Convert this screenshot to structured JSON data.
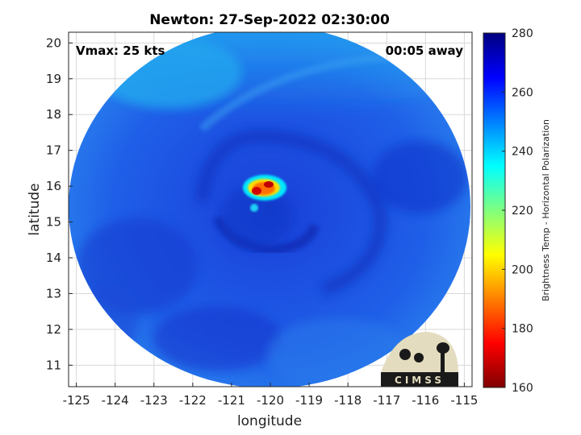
{
  "chart_data": {
    "type": "heatmap",
    "title": "Newton: 27-Sep-2022 02:30:00",
    "annotation_left": "Vmax: 25 kts",
    "annotation_right": "00:05 away",
    "xlabel": "longitude",
    "ylabel": "latitude",
    "xlim": [
      -125.2,
      -114.8
    ],
    "ylim": [
      10.4,
      20.3
    ],
    "x_ticks": [
      -125,
      -124,
      -123,
      -122,
      -121,
      -120,
      -119,
      -118,
      -117,
      -116,
      -115
    ],
    "y_ticks": [
      11,
      12,
      13,
      14,
      15,
      16,
      17,
      18,
      19,
      20
    ],
    "grid": true,
    "storm_center": {
      "lon": -120.0,
      "lat": 15.3
    },
    "convection_core": {
      "lon": -119.8,
      "lat": 15.95,
      "min_brightness_temp": 175
    },
    "colorbar": {
      "label": "Brightness Temp - Horizontal Polarization",
      "min": 160,
      "max": 280,
      "ticks": [
        160,
        180,
        200,
        220,
        240,
        260,
        280
      ],
      "colormap": "jet"
    },
    "logo_text": "CIMSS"
  }
}
